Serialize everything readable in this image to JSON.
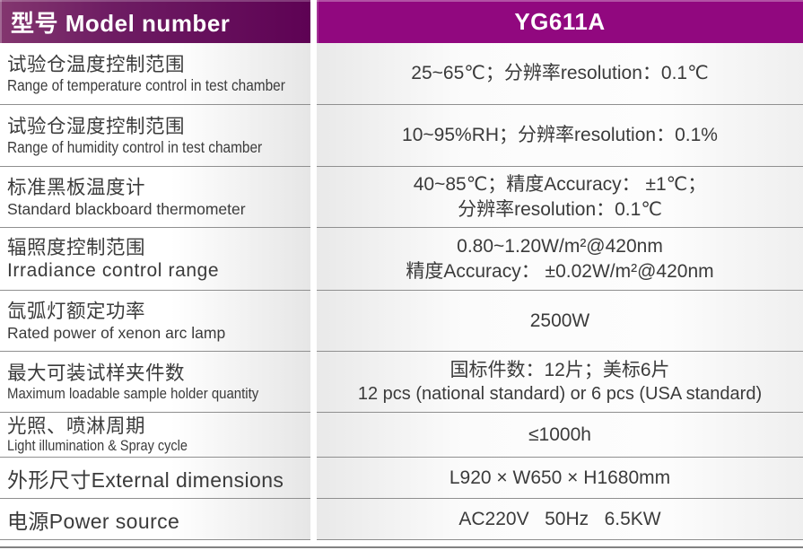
{
  "header": {
    "model_label": "型号 Model number",
    "model_value": "YG611A"
  },
  "rows": [
    {
      "zh": "试验仓温度控制范围",
      "en": "Range of temperature control in test chamber",
      "value": "25~65℃；分辨率resolution：0.1℃"
    },
    {
      "zh": "试验仓湿度控制范围",
      "en": "Range of humidity control in test chamber",
      "value": "10~95%RH；分辨率resolution：0.1%"
    },
    {
      "zh": "标准黑板温度计",
      "en": "Standard blackboard thermometer",
      "value": "40~85℃；精度Accuracy： ±1℃；",
      "value2": "分辨率resolution：0.1℃"
    },
    {
      "zh": "辐照度控制范围",
      "en": "Irradiance control range",
      "value": "0.80~1.20W/m²@420nm",
      "value2": "精度Accuracy： ±0.02W/m²@420nm"
    },
    {
      "zh": "氙弧灯额定功率",
      "en": "Rated power of xenon arc lamp",
      "value": "2500W"
    },
    {
      "zh": "最大可装试样夹件数",
      "en": "Maximum loadable sample holder quantity",
      "value": "国标件数：12片；美标6片",
      "value2": "12 pcs (national standard) or 6 pcs (USA standard)"
    },
    {
      "zh": "光照、喷淋周期",
      "en": "Light illumination & Spray cycle",
      "value": "≤1000h"
    },
    {
      "label": "外形尺寸External dimensions",
      "value": "L920 × W650 × H1680mm"
    },
    {
      "label": "电源Power source",
      "value": "AC220V   50Hz   6.5KW"
    }
  ],
  "colors": {
    "header_left_purple": "#5e0254",
    "header_right_magenta": "#91087f",
    "separator_gray": "#8f8f8f",
    "text_dark": "#3b3b3b"
  }
}
